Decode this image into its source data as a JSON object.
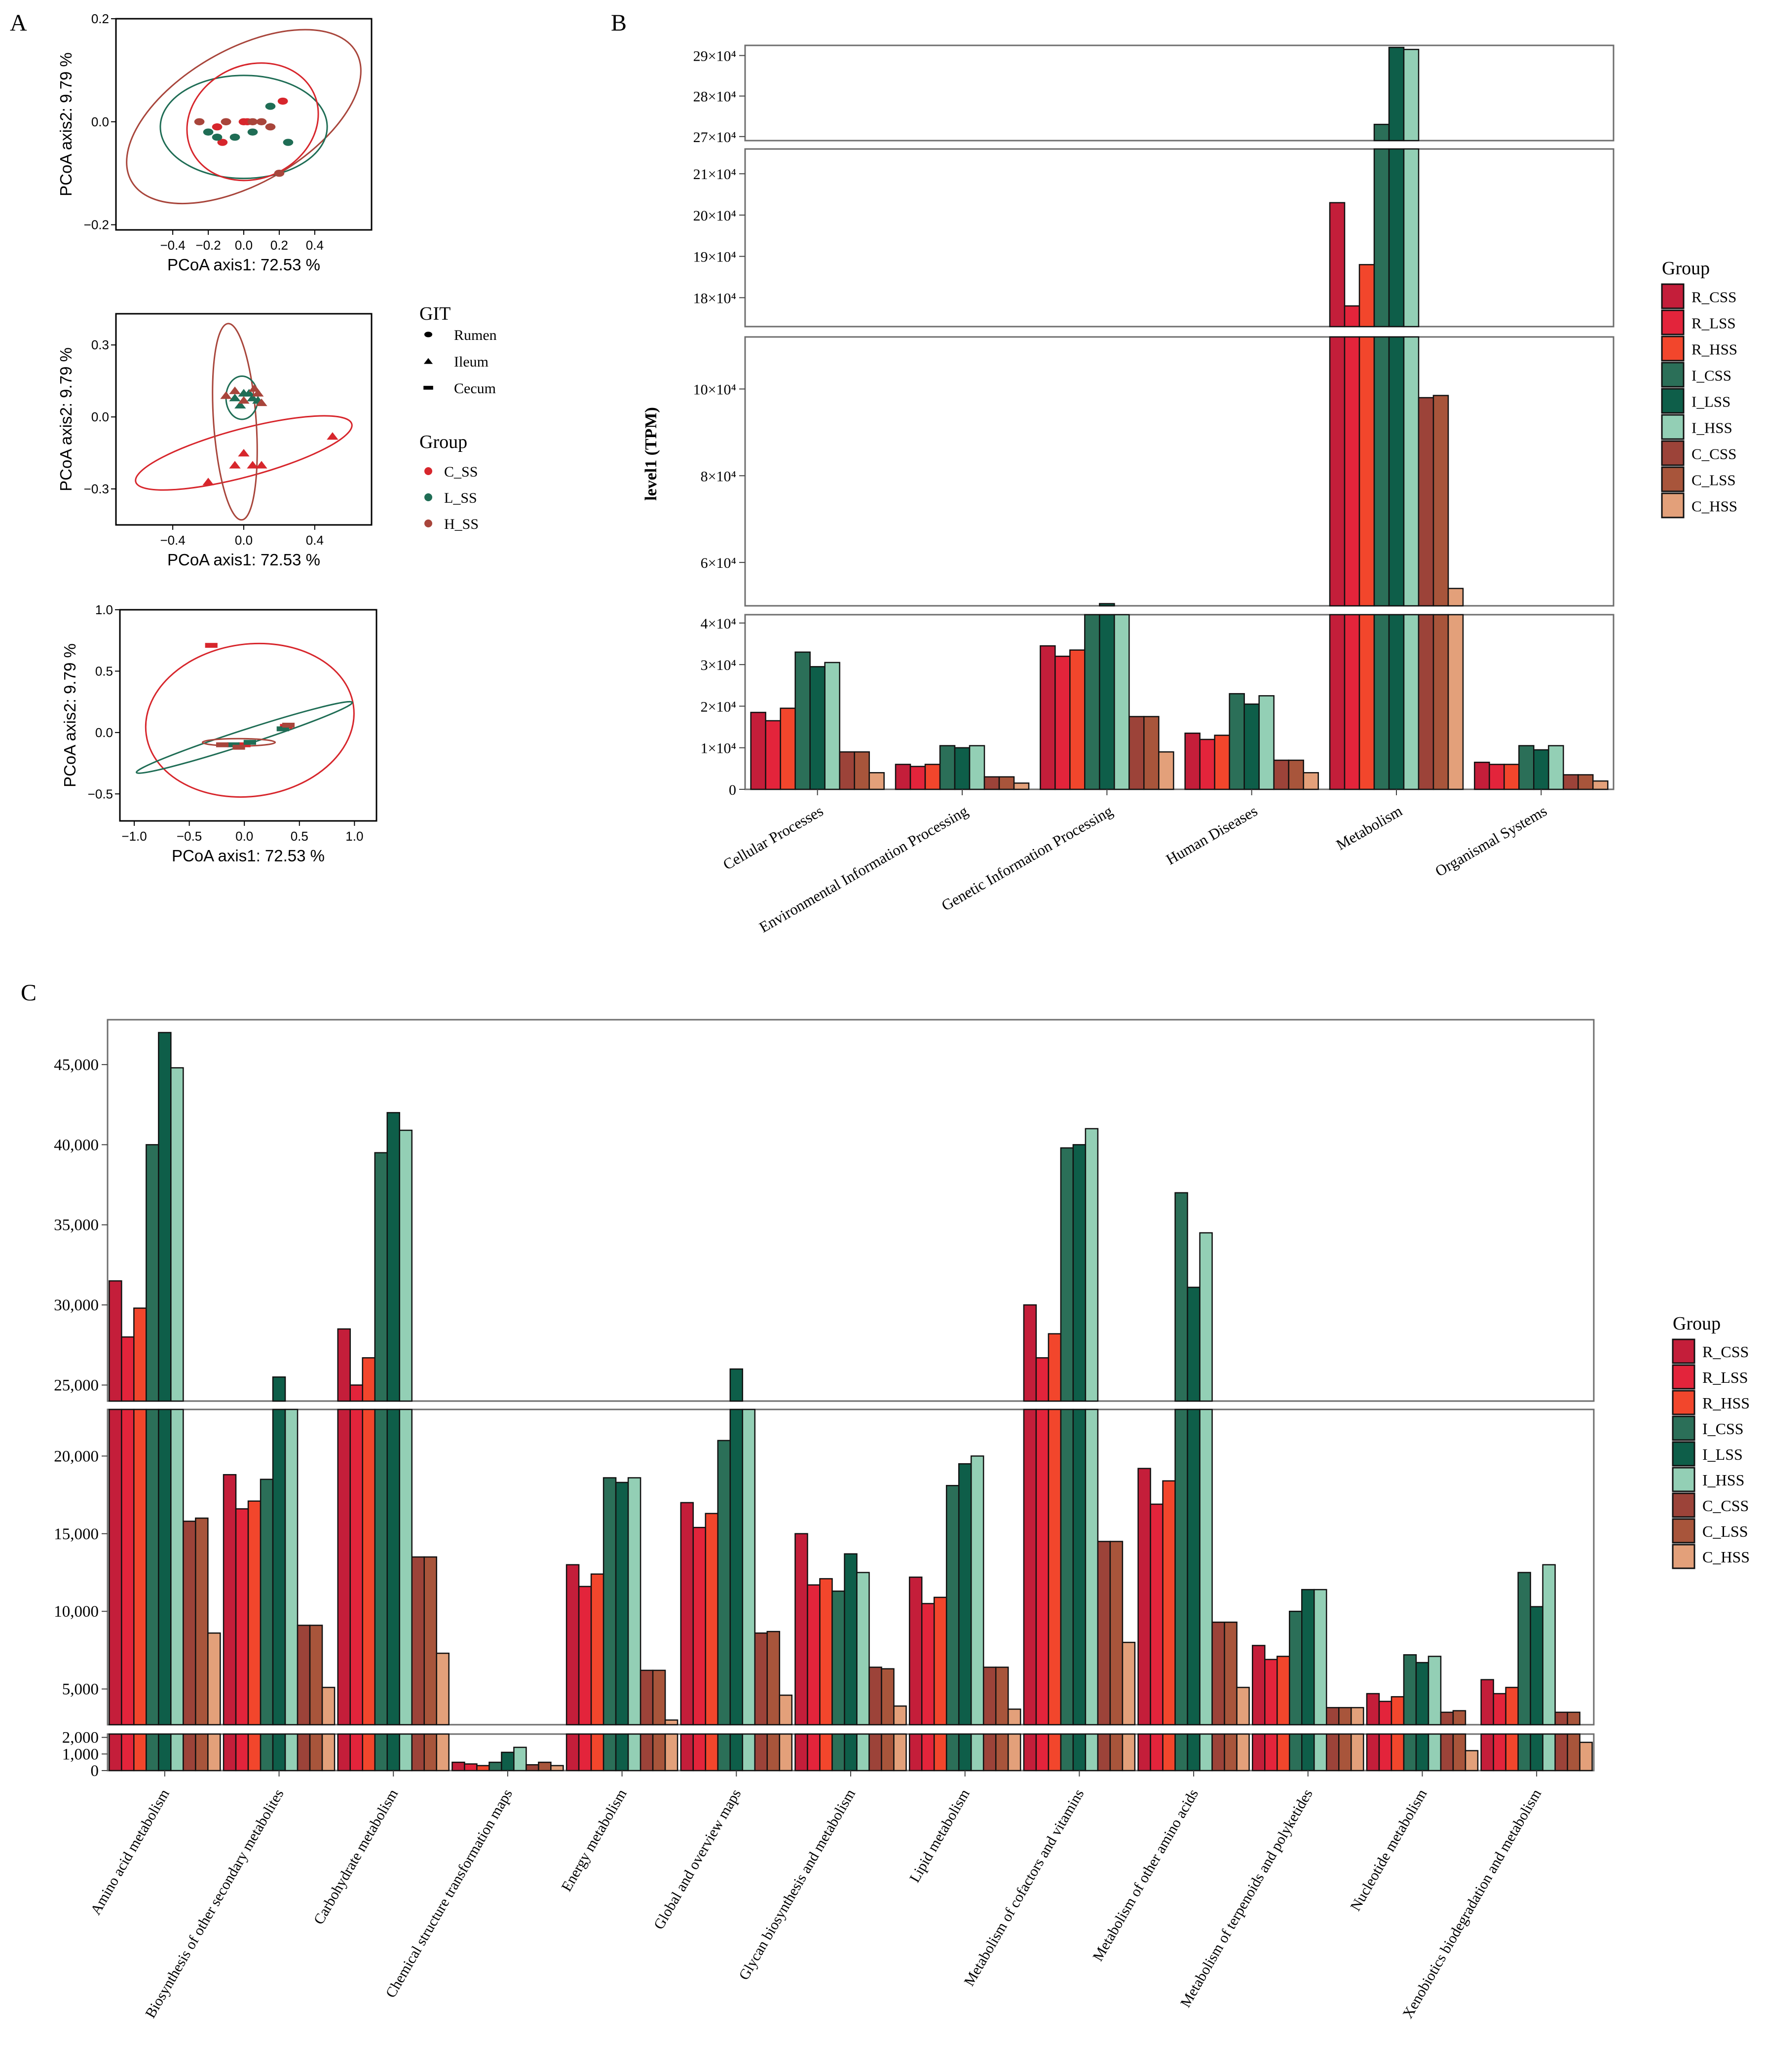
{
  "panel_labels": {
    "a": "A",
    "b": "B",
    "c": "C"
  },
  "colors": {
    "R_CSS": "#c41e3a",
    "R_LSS": "#e3243b",
    "R_HSS": "#f2462c",
    "I_CSS": "#2b6f58",
    "I_LSS": "#0e5e49",
    "I_HSS": "#93cfb5",
    "C_CSS": "#9c4339",
    "C_LSS": "#a8553b",
    "C_HSS": "#e3a07a",
    "C_SS": "#d7262c",
    "L_SS": "#1f6d55",
    "H_SS": "#a8453b"
  },
  "legend_pcoa": {
    "git_title": "GIT",
    "git_items": [
      "Rumen",
      "Ileum",
      "Cecum"
    ],
    "group_title": "Group",
    "group_items": [
      "C_SS",
      "L_SS",
      "H_SS"
    ]
  },
  "legend_b": {
    "title": "Group",
    "items": [
      "R_CSS",
      "R_LSS",
      "R_HSS",
      "I_CSS",
      "I_LSS",
      "I_HSS",
      "C_CSS",
      "C_LSS",
      "C_HSS"
    ]
  },
  "legend_c": {
    "title": "Group",
    "items": [
      "R_CSS",
      "R_LSS",
      "R_HSS",
      "I_CSS",
      "I_LSS",
      "I_HSS",
      "C_CSS",
      "C_LSS",
      "C_HSS"
    ]
  },
  "chart_data": [
    {
      "type": "scatter",
      "id": "pcoa_rumen",
      "shape": "circle",
      "xlabel": "PCoA axis1:  72.53 %",
      "ylabel": "PCoA axis2:  9.79 %",
      "xlim": [
        -0.72,
        0.72
      ],
      "ylim": [
        -0.21,
        0.2
      ],
      "xticks": [
        -0.4,
        -0.2,
        0.0,
        0.2,
        0.4
      ],
      "xtick_labels": [
        "−0.4",
        "−0.2",
        "0.0",
        "0.2",
        "0.4"
      ],
      "yticks": [
        -0.2,
        0.0,
        0.2
      ],
      "ytick_labels": [
        "−0.2",
        "0.0",
        "0.2"
      ],
      "points": [
        {
          "group": "C_SS",
          "x": -0.15,
          "y": -0.01
        },
        {
          "group": "C_SS",
          "x": -0.1,
          "y": 0.0
        },
        {
          "group": "C_SS",
          "x": 0.0,
          "y": 0.0
        },
        {
          "group": "C_SS",
          "x": 0.02,
          "y": 0.0
        },
        {
          "group": "C_SS",
          "x": 0.22,
          "y": 0.04
        },
        {
          "group": "C_SS",
          "x": -0.12,
          "y": -0.04
        },
        {
          "group": "L_SS",
          "x": -0.2,
          "y": -0.02
        },
        {
          "group": "L_SS",
          "x": -0.15,
          "y": -0.03
        },
        {
          "group": "L_SS",
          "x": -0.05,
          "y": -0.03
        },
        {
          "group": "L_SS",
          "x": 0.05,
          "y": -0.02
        },
        {
          "group": "L_SS",
          "x": 0.15,
          "y": 0.03
        },
        {
          "group": "L_SS",
          "x": 0.25,
          "y": -0.04
        },
        {
          "group": "H_SS",
          "x": -0.25,
          "y": 0.0
        },
        {
          "group": "H_SS",
          "x": -0.1,
          "y": 0.0
        },
        {
          "group": "H_SS",
          "x": 0.05,
          "y": 0.0
        },
        {
          "group": "H_SS",
          "x": 0.1,
          "y": 0.0
        },
        {
          "group": "H_SS",
          "x": 0.2,
          "y": -0.1
        },
        {
          "group": "H_SS",
          "x": 0.15,
          "y": -0.01
        }
      ],
      "ellipses": [
        {
          "group": "H_SS",
          "cx": 0.0,
          "cy": 0.01,
          "a": 0.73,
          "b": 0.13,
          "angle": -30
        },
        {
          "group": "L_SS",
          "cx": 0.0,
          "cy": -0.01,
          "a": 0.47,
          "b": 0.1,
          "angle": 0
        },
        {
          "group": "C_SS",
          "cx": 0.05,
          "cy": 0.0,
          "a": 0.38,
          "b": 0.11,
          "angle": -25
        }
      ]
    },
    {
      "type": "scatter",
      "id": "pcoa_ileum",
      "shape": "triangle",
      "xlabel": "PCoA axis1:  72.53 %",
      "ylabel": "PCoA axis2:  9.79 %",
      "xlim": [
        -0.72,
        0.72
      ],
      "ylim": [
        -0.45,
        0.43
      ],
      "xticks": [
        -0.4,
        0.0,
        0.4
      ],
      "xtick_labels": [
        "−0.4",
        "0.0",
        "0.4"
      ],
      "yticks": [
        -0.3,
        0.0,
        0.3
      ],
      "ytick_labels": [
        "−0.3",
        "0.0",
        "0.3"
      ],
      "points": [
        {
          "group": "C_SS",
          "x": -0.2,
          "y": -0.27
        },
        {
          "group": "C_SS",
          "x": -0.05,
          "y": -0.2
        },
        {
          "group": "C_SS",
          "x": 0.0,
          "y": -0.15
        },
        {
          "group": "C_SS",
          "x": 0.05,
          "y": -0.2
        },
        {
          "group": "C_SS",
          "x": 0.1,
          "y": -0.2
        },
        {
          "group": "C_SS",
          "x": 0.5,
          "y": -0.08
        },
        {
          "group": "L_SS",
          "x": -0.05,
          "y": 0.08
        },
        {
          "group": "L_SS",
          "x": 0.0,
          "y": 0.1
        },
        {
          "group": "L_SS",
          "x": 0.05,
          "y": 0.08
        },
        {
          "group": "L_SS",
          "x": -0.02,
          "y": 0.05
        },
        {
          "group": "L_SS",
          "x": 0.03,
          "y": 0.1
        },
        {
          "group": "L_SS",
          "x": 0.08,
          "y": 0.07
        },
        {
          "group": "H_SS",
          "x": -0.05,
          "y": 0.11
        },
        {
          "group": "H_SS",
          "x": 0.0,
          "y": 0.07
        },
        {
          "group": "H_SS",
          "x": 0.06,
          "y": 0.12
        },
        {
          "group": "H_SS",
          "x": 0.1,
          "y": 0.06
        },
        {
          "group": "H_SS",
          "x": -0.1,
          "y": 0.09
        },
        {
          "group": "H_SS",
          "x": 0.08,
          "y": 0.1
        }
      ],
      "ellipses": [
        {
          "group": "C_SS",
          "cx": 0.0,
          "cy": -0.15,
          "a": 0.63,
          "b": 0.1,
          "angle": -15
        },
        {
          "group": "H_SS",
          "cx": -0.05,
          "cy": -0.02,
          "a": 0.12,
          "b": 0.41,
          "angle": -4
        },
        {
          "group": "L_SS",
          "cx": -0.01,
          "cy": 0.08,
          "a": 0.09,
          "b": 0.09,
          "angle": 0
        }
      ]
    },
    {
      "type": "scatter",
      "id": "pcoa_cecum",
      "shape": "square",
      "xlabel": "PCoA axis1:  72.53 %",
      "ylabel": "PCoA axis2:  9.79 %",
      "xlim": [
        -1.13,
        1.2
      ],
      "ylim": [
        -0.72,
        1.0
      ],
      "xticks": [
        -1.0,
        -0.5,
        0.0,
        0.5,
        1.0
      ],
      "xtick_labels": [
        "−1.0",
        "−0.5",
        "0.0",
        "0.5",
        "1.0"
      ],
      "yticks": [
        -0.5,
        0.0,
        0.5,
        1.0
      ],
      "ytick_labels": [
        "−0.5",
        "0.0",
        "0.5",
        "1.0"
      ],
      "points": [
        {
          "group": "C_SS",
          "x": -0.3,
          "y": 0.71
        },
        {
          "group": "C_SS",
          "x": 0.0,
          "y": -0.1
        },
        {
          "group": "C_SS",
          "x": 0.38,
          "y": 0.05
        },
        {
          "group": "L_SS",
          "x": -0.1,
          "y": -0.1
        },
        {
          "group": "L_SS",
          "x": 0.35,
          "y": 0.03
        },
        {
          "group": "L_SS",
          "x": 0.05,
          "y": -0.08
        },
        {
          "group": "H_SS",
          "x": -0.2,
          "y": -0.1
        },
        {
          "group": "H_SS",
          "x": 0.4,
          "y": 0.06
        },
        {
          "group": "H_SS",
          "x": -0.05,
          "y": -0.12
        }
      ],
      "ellipses": [
        {
          "group": "C_SS",
          "cx": 0.05,
          "cy": 0.1,
          "a": 0.95,
          "b": 0.62,
          "angle": -8
        },
        {
          "group": "L_SS",
          "cx": 0.0,
          "cy": -0.04,
          "a": 1.03,
          "b": 0.06,
          "angle": -18
        },
        {
          "group": "H_SS",
          "cx": -0.05,
          "cy": -0.08,
          "a": 0.33,
          "b": 0.03,
          "angle": 0
        }
      ]
    },
    {
      "type": "bar",
      "id": "level1",
      "ylabel": "level1 (TPM)",
      "categories": [
        "Cellular Processes",
        "Environmental Information Processing",
        "Genetic Information Processing",
        "Human Diseases",
        "Metabolism",
        "Organismal Systems"
      ],
      "series": [
        {
          "name": "R_CSS",
          "values": [
            18500,
            6000,
            34500,
            13500,
            203000,
            6500
          ]
        },
        {
          "name": "R_LSS",
          "values": [
            16500,
            5500,
            32000,
            12000,
            178000,
            6000
          ]
        },
        {
          "name": "R_HSS",
          "values": [
            19500,
            6000,
            33500,
            13000,
            188000,
            6000
          ]
        },
        {
          "name": "I_CSS",
          "values": [
            33000,
            10500,
            48000,
            23000,
            273000,
            10500
          ]
        },
        {
          "name": "I_LSS",
          "values": [
            29500,
            10000,
            50500,
            20500,
            292000,
            9500
          ]
        },
        {
          "name": "I_HSS",
          "values": [
            30500,
            10500,
            49500,
            22500,
            291500,
            10500
          ]
        },
        {
          "name": "C_CSS",
          "values": [
            9000,
            3000,
            17500,
            7000,
            98000,
            3500
          ]
        },
        {
          "name": "C_LSS",
          "values": [
            9000,
            3000,
            17500,
            7000,
            98500,
            3500
          ]
        },
        {
          "name": "C_HSS",
          "values": [
            4000,
            1500,
            9000,
            4000,
            54000,
            2000
          ]
        }
      ],
      "y_segments": [
        {
          "range": [
            0,
            42000
          ],
          "ticks": [
            0,
            10000,
            20000,
            30000,
            40000
          ],
          "tick_labels": [
            "0",
            "1×10⁴",
            "2×10⁴",
            "3×10⁴",
            "4×10⁴"
          ]
        },
        {
          "range": [
            50000,
            112000
          ],
          "ticks": [
            60000,
            80000,
            100000
          ],
          "tick_labels": [
            "6×10⁴",
            "8×10⁴",
            "10×10⁴"
          ]
        },
        {
          "range": [
            173000,
            216000
          ],
          "ticks": [
            180000,
            190000,
            200000,
            210000
          ],
          "tick_labels": [
            "18×10⁴",
            "19×10⁴",
            "20×10⁴",
            "21×10⁴"
          ]
        },
        {
          "range": [
            269000,
            292500
          ],
          "ticks": [
            270000,
            280000,
            290000
          ],
          "tick_labels": [
            "27×10⁴",
            "28×10⁴",
            "29×10⁴"
          ]
        }
      ]
    },
    {
      "type": "bar",
      "id": "level2",
      "ylabel": "",
      "categories": [
        "Amino acid metabolism",
        "Biosynthesis of other secondary metabolites",
        "Carbohydrate metabolism",
        "Chemical structure transformation maps",
        "Energy metabolism",
        "Global and overview maps",
        "Glycan biosynthesis and metabolism",
        "Lipid metabolism",
        "Metabolism of cofactors and vitamins",
        "Metabolism of other amino acids",
        "Metabolism of terpenoids and polyketides",
        "Nucleotide metabolism",
        "Xenobiotics biodegradation and metabolism"
      ],
      "series": [
        {
          "name": "R_CSS",
          "values": [
            31500,
            18800,
            28500,
            500,
            13000,
            17000,
            15000,
            12200,
            30000,
            19200,
            7800,
            4700,
            5600
          ]
        },
        {
          "name": "R_LSS",
          "values": [
            28000,
            16600,
            25000,
            400,
            11600,
            15400,
            11700,
            10500,
            26700,
            16900,
            6900,
            4200,
            4700
          ]
        },
        {
          "name": "R_HSS",
          "values": [
            29800,
            17100,
            26700,
            300,
            12400,
            16300,
            12100,
            10900,
            28200,
            18400,
            7100,
            4500,
            5100
          ]
        },
        {
          "name": "I_CSS",
          "values": [
            40000,
            18500,
            39500,
            500,
            18600,
            21000,
            11300,
            18100,
            39800,
            37000,
            10000,
            7200,
            12500
          ]
        },
        {
          "name": "I_LSS",
          "values": [
            47000,
            25500,
            42000,
            1100,
            18300,
            26000,
            13700,
            19500,
            40000,
            31100,
            11400,
            6700,
            10300
          ]
        },
        {
          "name": "I_HSS",
          "values": [
            44800,
            23000,
            40900,
            1400,
            18600,
            23000,
            12500,
            20000,
            41000,
            34500,
            11400,
            7100,
            13000
          ]
        },
        {
          "name": "C_CSS",
          "values": [
            15800,
            9100,
            13500,
            350,
            6200,
            8600,
            6400,
            6400,
            14500,
            9300,
            3800,
            3500,
            3500
          ]
        },
        {
          "name": "C_LSS",
          "values": [
            16000,
            9100,
            13500,
            500,
            6200,
            8700,
            6300,
            6400,
            14500,
            9300,
            3800,
            3600,
            3500
          ]
        },
        {
          "name": "C_HSS",
          "values": [
            8600,
            5100,
            7300,
            300,
            3000,
            4600,
            3900,
            3700,
            8000,
            5100,
            3800,
            1200,
            1700
          ]
        }
      ],
      "y_segments": [
        {
          "range": [
            0,
            2200
          ],
          "ticks": [
            0,
            1000,
            2000
          ],
          "tick_labels": [
            "0",
            "1,000",
            "2,000"
          ]
        },
        {
          "range": [
            2700,
            23000
          ],
          "ticks": [
            5000,
            10000,
            15000,
            20000
          ],
          "tick_labels": [
            "5,000",
            "10,000",
            "15,000",
            "20,000"
          ]
        },
        {
          "range": [
            24000,
            47800
          ],
          "ticks": [
            25000,
            30000,
            35000,
            40000,
            45000
          ],
          "tick_labels": [
            "25,000",
            "30,000",
            "35,000",
            "40,000",
            "45,000"
          ]
        }
      ]
    }
  ]
}
